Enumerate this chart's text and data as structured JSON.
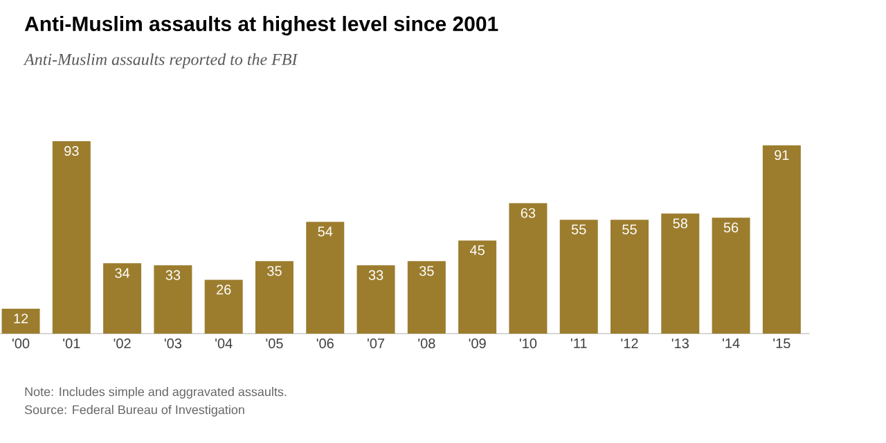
{
  "chart_data": {
    "type": "bar",
    "title": "Anti-Muslim assaults at highest level since 2001",
    "subtitle": "Anti-Muslim assaults reported to the FBI",
    "categories": [
      "'00",
      "'01",
      "'02",
      "'03",
      "'04",
      "'05",
      "'06",
      "'07",
      "'08",
      "'09",
      "'10",
      "'11",
      "'12",
      "'13",
      "'14",
      "'15"
    ],
    "values": [
      12,
      93,
      34,
      33,
      26,
      35,
      54,
      33,
      35,
      45,
      63,
      55,
      55,
      58,
      56,
      91
    ],
    "color": "#9c7d2e",
    "data_labels": true,
    "annotations": [
      "Note: Includes simple and aggravated assaults.",
      "Source: Federal Bureau of Investigation"
    ]
  }
}
